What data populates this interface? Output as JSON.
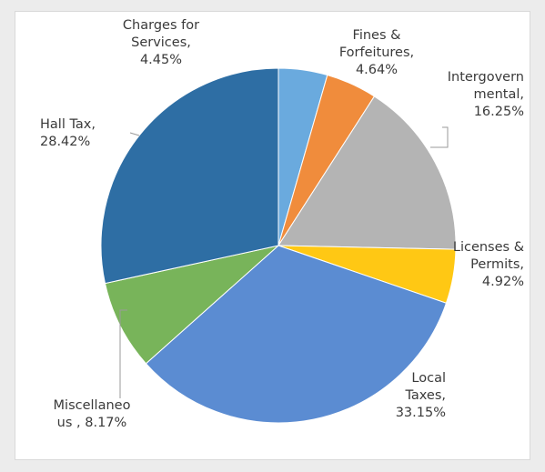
{
  "chart_data": {
    "type": "pie",
    "title": "",
    "slices": [
      {
        "label": "Charges for Services",
        "value": 4.45,
        "label_lines": [
          "Charges for",
          "Services,",
          "4.45%"
        ],
        "color": "#6aaade"
      },
      {
        "label": "Fines & Forfeitures",
        "value": 4.64,
        "label_lines": [
          "Fines &",
          "Forfeitures,",
          "4.64%"
        ],
        "color": "#f08c3c"
      },
      {
        "label": "Intergovernmental",
        "value": 16.25,
        "label_lines": [
          "Intergovern",
          "mental,",
          "16.25%"
        ],
        "color": "#b4b4b4"
      },
      {
        "label": "Licenses & Permits",
        "value": 4.92,
        "label_lines": [
          "Licenses &",
          "Permits,",
          "4.92%"
        ],
        "color": "#ffc814"
      },
      {
        "label": "Local Taxes",
        "value": 33.15,
        "label_lines": [
          "Local",
          "Taxes,",
          "33.15%"
        ],
        "color": "#5b8cd2"
      },
      {
        "label": "Miscellaneous",
        "value": 8.17,
        "label_lines": [
          "Miscellaneo",
          "us , 8.17%"
        ],
        "color": "#78b45a"
      },
      {
        "label": "Hall Tax",
        "value": 28.42,
        "label_lines": [
          "Hall Tax,",
          "28.42%"
        ],
        "color": "#2e6ea4"
      }
    ]
  }
}
